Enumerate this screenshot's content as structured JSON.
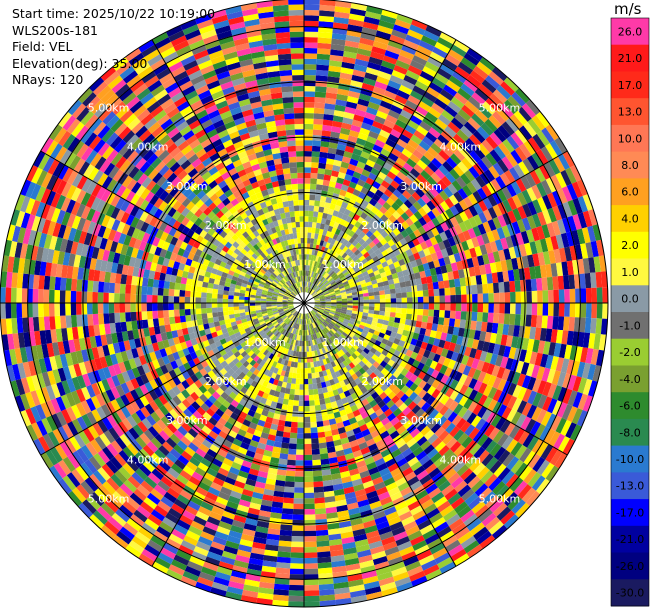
{
  "info": {
    "start_time": "Start time: 2025/10/22 10:19:00",
    "station": "WLS200s-181",
    "field": "Field: VEL",
    "elevation": "Elevation(deg): 35.00",
    "nrays": "NRays: 120"
  },
  "colorbar": {
    "unit": "m/s",
    "levels": [
      {
        "label": "26.0",
        "color": "#ff3aa8"
      },
      {
        "label": "21.0",
        "color": "#ff1a1a"
      },
      {
        "label": "17.0",
        "color": "#ff2a1a"
      },
      {
        "label": "13.0",
        "color": "#ff5530"
      },
      {
        "label": "10.0",
        "color": "#ff7755"
      },
      {
        "label": "8.0",
        "color": "#ff8a55"
      },
      {
        "label": "6.0",
        "color": "#ffa020"
      },
      {
        "label": "4.0",
        "color": "#ffd000"
      },
      {
        "label": "2.0",
        "color": "#ffff00"
      },
      {
        "label": "1.0",
        "color": "#fff840"
      },
      {
        "label": "0.0",
        "color": "#8a9aa6"
      },
      {
        "label": "-1.0",
        "color": "#707070"
      },
      {
        "label": "-2.0",
        "color": "#9acd32"
      },
      {
        "label": "-4.0",
        "color": "#7aa030"
      },
      {
        "label": "-6.0",
        "color": "#2e8b2e"
      },
      {
        "label": "-8.0",
        "color": "#2a8a50"
      },
      {
        "label": "-10.0",
        "color": "#2a7ad0"
      },
      {
        "label": "-13.0",
        "color": "#3a5ad8"
      },
      {
        "label": "-17.0",
        "color": "#0000ff"
      },
      {
        "label": "-21.0",
        "color": "#0000a0"
      },
      {
        "label": "-26.0",
        "color": "#000080"
      },
      {
        "label": "-30.0",
        "color": "#1a1a60"
      }
    ]
  },
  "chart_data": {
    "type": "heatmap",
    "projection": "polar PPI",
    "field": "VEL",
    "unit": "m/s",
    "rays": 120,
    "max_range_km": 5.5,
    "range_rings_km": [
      1,
      2,
      3,
      4,
      5
    ],
    "ring_labels": [
      "1.00km",
      "2.00km",
      "3.00km",
      "4.00km",
      "5.00km"
    ],
    "vmin": -30.0,
    "vmax": 26.0,
    "regime": [
      {
        "range_km": [
          0.0,
          0.8
        ],
        "dominant": "mixed -2.0 to 2.0 (green/yellow/grey)"
      },
      {
        "range_km": [
          0.8,
          2.1
        ],
        "dominant": "near-zero: grey, yellow, yellow-green"
      },
      {
        "range_km": [
          2.1,
          5.5
        ],
        "dominant": "noisy, full colour range"
      }
    ]
  }
}
